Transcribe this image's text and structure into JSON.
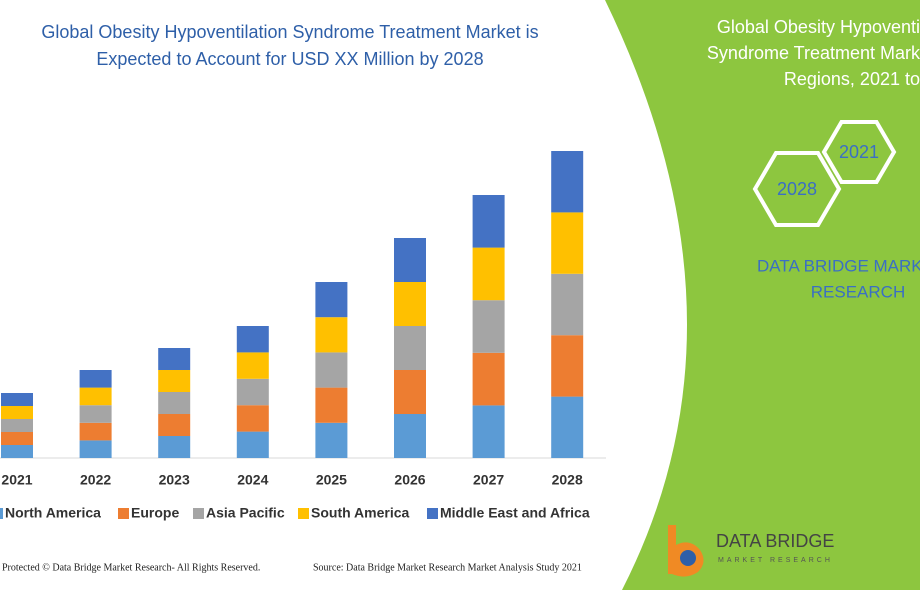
{
  "chart_data": {
    "type": "bar",
    "stacked": true,
    "title": [
      "Global Obesity Hypoventilation Syndrome Treatment Market is",
      "Expected to Account for USD XX Million by 2028"
    ],
    "categories": [
      "2021",
      "2022",
      "2023",
      "2024",
      "2025",
      "2026",
      "2027",
      "2028"
    ],
    "series": [
      {
        "name": "North America",
        "color": "#5b9bd5",
        "values": [
          13,
          17.6,
          22,
          26.4,
          35.2,
          44,
          52.6,
          61.4
        ]
      },
      {
        "name": "Europe",
        "color": "#ed7d31",
        "values": [
          13,
          17.6,
          22,
          26.4,
          35.2,
          44,
          52.6,
          61.4
        ]
      },
      {
        "name": "Asia Pacific",
        "color": "#a5a5a5",
        "values": [
          13,
          17.6,
          22,
          26.4,
          35.2,
          44,
          52.6,
          61.4
        ]
      },
      {
        "name": "South America",
        "color": "#ffc000",
        "values": [
          13,
          17.6,
          22,
          26.4,
          35.2,
          44,
          52.6,
          61.4
        ]
      },
      {
        "name": "Middle East and Africa",
        "color": "#4472c4",
        "values": [
          13,
          17.6,
          22,
          26.4,
          35.2,
          44,
          52.6,
          61.4
        ]
      }
    ],
    "ylim": [
      0,
      310
    ]
  },
  "panel": {
    "heading": [
      "Global Obesity Hypoventi",
      "Syndrome Treatment Mark",
      "Regions, 2021 to"
    ],
    "hexagons": [
      "2021",
      "2028"
    ],
    "brand": [
      "DATA BRIDGE MARK",
      "RESEARCH"
    ]
  },
  "logo": {
    "name": "DATA BRIDGE",
    "tagline": "MARKET RESEARCH"
  },
  "footer": {
    "copyright": "Protected © Data Bridge Market Research- All Rights Reserved.",
    "source": "Source: Data Bridge Market Research Market Analysis Study 2021"
  }
}
